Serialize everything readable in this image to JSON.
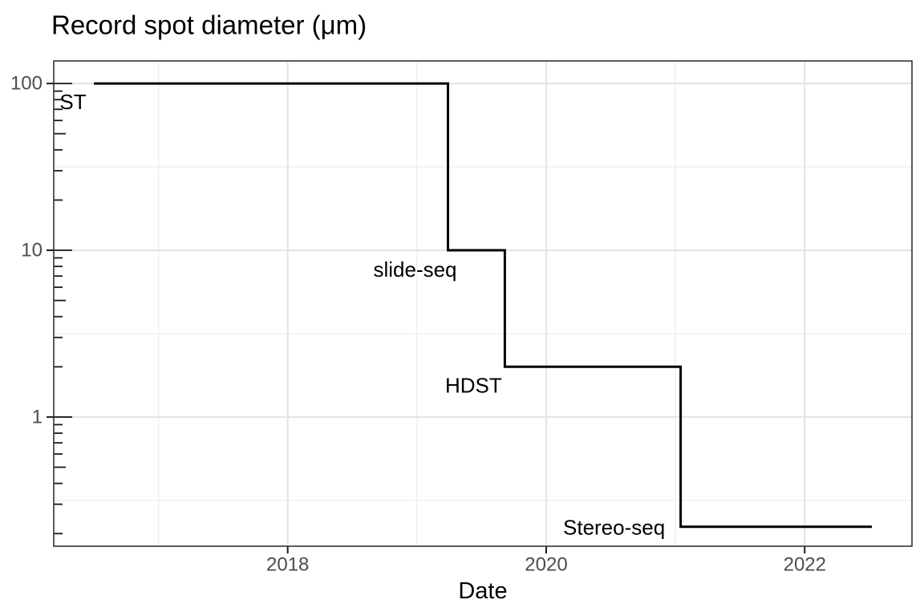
{
  "chart_data": {
    "type": "step",
    "title": "Record spot diameter (μm)",
    "xlabel": "Date",
    "ylabel": "Record spot diameter (μm)",
    "y_scale": "log10",
    "grid": true,
    "legend": "none",
    "x_tick_labels": [
      "2018",
      "2020",
      "2022"
    ],
    "x_tick_values": [
      2018,
      2020,
      2022
    ],
    "x_minor_values": [
      2017,
      2019,
      2021
    ],
    "x_range": [
      2016.19,
      2022.83
    ],
    "y_tick_labels": [
      "100",
      "10",
      "1"
    ],
    "y_tick_values": [
      100,
      10,
      1
    ],
    "y_minor_values": [
      31.6,
      3.16,
      0.316
    ],
    "y_range": [
      0.168,
      136.5
    ],
    "end_date": 2022.52,
    "milestones": [
      {
        "label": "ST",
        "date": 2016.5,
        "diameter_um": 100
      },
      {
        "label": "slide-seq",
        "date": 2019.24,
        "diameter_um": 10
      },
      {
        "label": "HDST",
        "date": 2019.68,
        "diameter_um": 2
      },
      {
        "label": "Stereo-seq",
        "date": 2021.04,
        "diameter_um": 0.22
      }
    ]
  },
  "colors": {
    "line": "#000000",
    "panel_border": "#333333",
    "tick_mark": "#1a1a1a",
    "tick_label": "#4d4d4d",
    "grid_major": "#e5e5e5",
    "grid_minor": "#efefef",
    "background": "#ffffff"
  }
}
